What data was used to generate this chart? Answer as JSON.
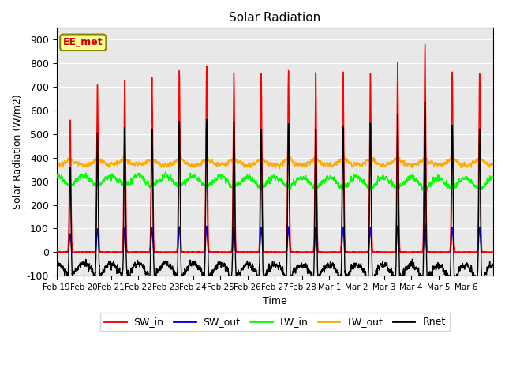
{
  "title": "Solar Radiation",
  "xlabel": "Time",
  "ylabel": "Solar Radiation (W/m2)",
  "ylim": [
    -100,
    950
  ],
  "yticks": [
    -100,
    0,
    100,
    200,
    300,
    400,
    500,
    600,
    700,
    800,
    900
  ],
  "num_days": 16,
  "day_labels": [
    "Feb 19",
    "Feb 20",
    "Feb 21",
    "Feb 22",
    "Feb 23",
    "Feb 24",
    "Feb 25",
    "Feb 26",
    "Feb 27",
    "Feb 28",
    "Mar 1",
    "Mar 2",
    "Mar 3",
    "Mar 4",
    "Mar 5",
    "Mar 6"
  ],
  "colors": {
    "SW_in": "#ff0000",
    "SW_out": "#0000ff",
    "LW_in": "#00ff00",
    "LW_out": "#ffaa00",
    "Rnet": "#000000"
  },
  "background_color": "#e8e8e8",
  "annotation_text": "EE_met",
  "annotation_color": "#cc0000",
  "annotation_bg": "#ffff99",
  "annotation_border": "#888800",
  "line_width": 1.0,
  "sw_peaks": [
    560,
    710,
    730,
    730,
    770,
    790,
    760,
    760,
    770,
    760,
    760,
    760,
    800,
    880,
    760,
    760
  ]
}
